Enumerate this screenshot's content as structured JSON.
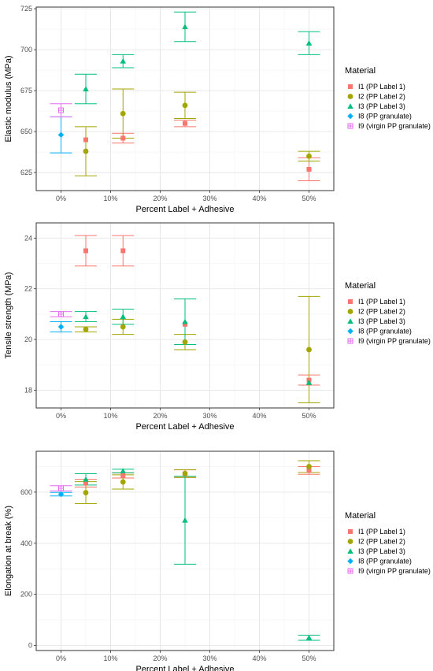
{
  "x_axis_title": "Percent Label + Adhesive",
  "x_ticks": [
    0,
    10,
    20,
    30,
    40,
    50
  ],
  "x_tick_labels": [
    "0%",
    "10%",
    "20%",
    "30%",
    "40%",
    "50%"
  ],
  "legend": {
    "title": "Material",
    "items": [
      {
        "key": "I1",
        "label": "I1 (PP Label 1)",
        "color": "#F8766D",
        "shape": "square"
      },
      {
        "key": "I2",
        "label": "I2 (PP Label 2)",
        "color": "#A3A500",
        "shape": "circle"
      },
      {
        "key": "I3",
        "label": "I3 (PP Label 3)",
        "color": "#00BF7D",
        "shape": "triangle"
      },
      {
        "key": "I8",
        "label": "I8 (PP granulate)",
        "color": "#00B0F6",
        "shape": "diamond"
      },
      {
        "key": "I9",
        "label": "I9 (virgin PP granulate)",
        "color": "#E76BF3",
        "shape": "square-open"
      }
    ]
  },
  "chart_data": [
    {
      "type": "scatter",
      "ylabel": "Elastic modulus (MPa)",
      "xlabel": "Percent Label + Adhesive",
      "xlim": [
        -5,
        55
      ],
      "ylim": [
        614,
        726
      ],
      "yticks": [
        625,
        650,
        675,
        700,
        725
      ],
      "grid": true,
      "legend_position": "right",
      "series": [
        {
          "key": "I1",
          "points": [
            {
              "x": 5,
              "y": 645
            },
            {
              "x": 12.5,
              "y": 646,
              "lo": 643,
              "hi": 649
            },
            {
              "x": 25,
              "y": 655,
              "lo": 653,
              "hi": 657
            },
            {
              "x": 50,
              "y": 627,
              "lo": 620,
              "hi": 634
            }
          ]
        },
        {
          "key": "I2",
          "points": [
            {
              "x": 5,
              "y": 638,
              "lo": 623,
              "hi": 653
            },
            {
              "x": 12.5,
              "y": 661,
              "lo": 646,
              "hi": 676
            },
            {
              "x": 25,
              "y": 666,
              "lo": 658,
              "hi": 674
            },
            {
              "x": 50,
              "y": 635,
              "lo": 632,
              "hi": 638
            }
          ]
        },
        {
          "key": "I3",
          "points": [
            {
              "x": 5,
              "y": 676,
              "lo": 667,
              "hi": 685
            },
            {
              "x": 12.5,
              "y": 693,
              "lo": 689,
              "hi": 697
            },
            {
              "x": 25,
              "y": 714,
              "lo": 705,
              "hi": 723
            },
            {
              "x": 50,
              "y": 704,
              "lo": 697,
              "hi": 711
            }
          ]
        },
        {
          "key": "I8",
          "points": [
            {
              "x": 0,
              "y": 648,
              "lo": 637,
              "hi": 659
            }
          ]
        },
        {
          "key": "I9",
          "points": [
            {
              "x": 0,
              "y": 663,
              "lo": 659,
              "hi": 667
            }
          ]
        }
      ]
    },
    {
      "type": "scatter",
      "ylabel": "Tensile strength (MPa)",
      "xlabel": "Percent Label + Adhesive",
      "xlim": [
        -5,
        55
      ],
      "ylim": [
        17.3,
        24.6
      ],
      "yticks": [
        18,
        20,
        22,
        24
      ],
      "grid": true,
      "legend_position": "right",
      "series": [
        {
          "key": "I1",
          "points": [
            {
              "x": 5,
              "y": 23.5,
              "lo": 22.9,
              "hi": 24.1
            },
            {
              "x": 12.5,
              "y": 23.5,
              "lo": 22.9,
              "hi": 24.1
            },
            {
              "x": 25,
              "y": 20.6
            },
            {
              "x": 50,
              "y": 18.4,
              "lo": 18.2,
              "hi": 18.6
            }
          ]
        },
        {
          "key": "I2",
          "points": [
            {
              "x": 5,
              "y": 20.4,
              "lo": 20.3,
              "hi": 20.5
            },
            {
              "x": 12.5,
              "y": 20.5,
              "lo": 20.2,
              "hi": 20.8
            },
            {
              "x": 25,
              "y": 19.9,
              "lo": 19.6,
              "hi": 20.2
            },
            {
              "x": 50,
              "y": 19.6,
              "lo": 17.5,
              "hi": 21.7
            }
          ]
        },
        {
          "key": "I3",
          "points": [
            {
              "x": 5,
              "y": 20.9,
              "lo": 20.7,
              "hi": 21.1
            },
            {
              "x": 12.5,
              "y": 20.9,
              "lo": 20.6,
              "hi": 21.2
            },
            {
              "x": 25,
              "y": 20.7,
              "lo": 19.8,
              "hi": 21.6
            },
            {
              "x": 50,
              "y": 18.3
            }
          ]
        },
        {
          "key": "I8",
          "points": [
            {
              "x": 0,
              "y": 20.5,
              "lo": 20.3,
              "hi": 20.7
            }
          ]
        },
        {
          "key": "I9",
          "points": [
            {
              "x": 0,
              "y": 21.0,
              "lo": 20.9,
              "hi": 21.1
            }
          ]
        }
      ]
    },
    {
      "type": "scatter",
      "ylabel": "Elongation at break (%)",
      "xlabel": "Percent Label + Adhesive",
      "xlim": [
        -5,
        55
      ],
      "ylim": [
        -20,
        760
      ],
      "yticks": [
        0,
        200,
        400,
        600
      ],
      "grid": true,
      "legend_position": "right",
      "series": [
        {
          "key": "I1",
          "points": [
            {
              "x": 5,
              "y": 635,
              "lo": 620,
              "hi": 650
            },
            {
              "x": 12.5,
              "y": 665,
              "lo": 655,
              "hi": 675
            },
            {
              "x": 25,
              "y": 672,
              "lo": 657,
              "hi": 687
            },
            {
              "x": 50,
              "y": 685,
              "lo": 670,
              "hi": 700
            }
          ]
        },
        {
          "key": "I2",
          "points": [
            {
              "x": 5,
              "y": 598,
              "lo": 555,
              "hi": 641
            },
            {
              "x": 12.5,
              "y": 640,
              "lo": 612,
              "hi": 668
            },
            {
              "x": 25,
              "y": 673,
              "lo": 658,
              "hi": 688
            },
            {
              "x": 50,
              "y": 700,
              "lo": 677,
              "hi": 723
            }
          ]
        },
        {
          "key": "I3",
          "points": [
            {
              "x": 5,
              "y": 650,
              "lo": 628,
              "hi": 672
            },
            {
              "x": 12.5,
              "y": 683,
              "lo": 676,
              "hi": 690
            },
            {
              "x": 25,
              "y": 490,
              "lo": 318,
              "hi": 662
            },
            {
              "x": 50,
              "y": 30,
              "lo": 20,
              "hi": 40
            }
          ]
        },
        {
          "key": "I8",
          "points": [
            {
              "x": 0,
              "y": 592,
              "lo": 585,
              "hi": 599
            }
          ]
        },
        {
          "key": "I9",
          "points": [
            {
              "x": 0,
              "y": 615,
              "lo": 605,
              "hi": 625
            }
          ]
        }
      ]
    }
  ]
}
